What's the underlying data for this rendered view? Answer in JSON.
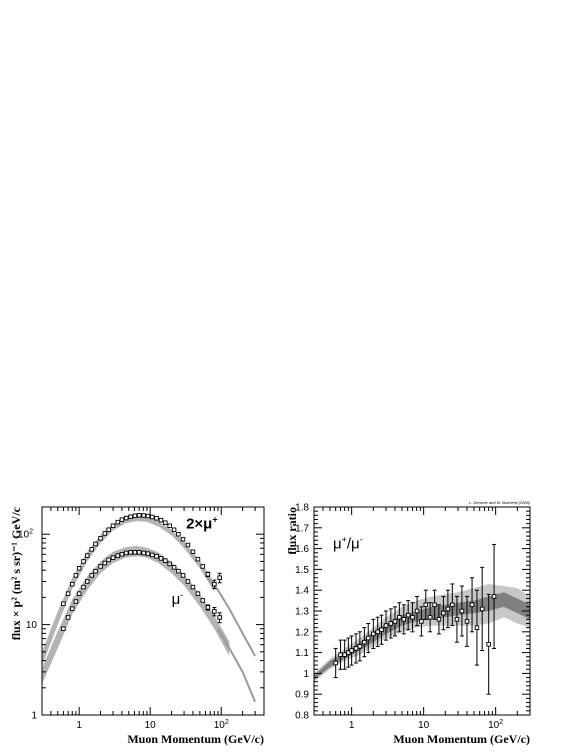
{
  "chart_data": [
    {
      "type": "line",
      "xlabel": "Muon Momentum (GeV/c)",
      "ylabel": "flux × p² (m² s sr)⁻¹ GeV/c",
      "x_scale": "log",
      "y_scale": "log",
      "xlim": [
        0.3,
        400
      ],
      "ylim": [
        1,
        200
      ],
      "x_ticks": [
        {
          "v": 1,
          "t": "1"
        },
        {
          "v": 10,
          "t": "10"
        },
        {
          "v": 100,
          "t": "10",
          "sup": "2"
        }
      ],
      "y_ticks": [
        {
          "v": 1,
          "t": "1"
        },
        {
          "v": 10,
          "t": "10"
        },
        {
          "v": 100,
          "t": "10",
          "sup": "2"
        }
      ],
      "annotations": [
        {
          "text": "2×μ",
          "sup": "+",
          "at": [
            32,
            115
          ]
        },
        {
          "text": "μ",
          "sup": "-",
          "at": [
            20,
            17
          ]
        }
      ],
      "series": [
        {
          "role": "band-plus",
          "x": [
            0.3,
            0.5,
            0.8,
            1.3,
            2,
            3,
            4.5,
            6.5,
            9,
            13,
            20,
            30,
            50,
            80
          ],
          "low": [
            3.5,
            10,
            25,
            50,
            80,
            110,
            132,
            140,
            137,
            122,
            97,
            70,
            42,
            23
          ],
          "high": [
            5,
            14,
            33,
            64,
            98,
            130,
            150,
            158,
            156,
            140,
            112,
            83,
            51,
            29
          ]
        },
        {
          "role": "band-minus",
          "x": [
            0.3,
            0.5,
            0.8,
            1.3,
            2,
            3,
            4.5,
            6.5,
            9,
            13,
            20,
            30,
            50,
            80,
            130
          ],
          "low": [
            2.2,
            5.5,
            13,
            24,
            37,
            48,
            55,
            57,
            55,
            48,
            37,
            27,
            16,
            9,
            4.5
          ],
          "high": [
            3.3,
            8.5,
            19,
            34,
            50,
            64,
            72,
            74,
            71,
            63,
            49,
            36,
            22,
            12.5,
            6.5
          ]
        },
        {
          "role": "tail-plus",
          "x": [
            60,
            90,
            130,
            200,
            300
          ],
          "y": [
            35,
            24,
            15,
            8,
            4.5
          ]
        },
        {
          "role": "tail-minus",
          "x": [
            90,
            130,
            200,
            300
          ],
          "y": [
            9,
            5.5,
            3,
            1.4
          ]
        },
        {
          "role": "points-plus",
          "x": [
            0.6,
            0.7,
            0.8,
            0.9,
            1.0,
            1.15,
            1.3,
            1.5,
            1.7,
            2.0,
            2.3,
            2.6,
            3.0,
            3.5,
            4.0,
            4.6,
            5.3,
            6.1,
            7.0,
            8.1,
            9.3,
            10.7,
            12.3,
            14.2,
            16.3,
            18.8,
            21.7,
            25,
            29,
            34,
            40,
            47,
            55,
            65,
            80,
            95
          ],
          "y": [
            17,
            22,
            28,
            35,
            42,
            50,
            58,
            68,
            78,
            90,
            102,
            112,
            124,
            136,
            145,
            151,
            156,
            160,
            162,
            161,
            159,
            155,
            150,
            143,
            134,
            124,
            112,
            100,
            88,
            76,
            64,
            53,
            44,
            36,
            28,
            33
          ],
          "err": [
            0,
            0,
            0,
            0,
            0,
            0,
            0,
            0,
            0,
            0,
            0,
            0,
            0,
            0,
            0,
            0,
            0,
            0,
            0,
            0,
            0,
            0,
            0,
            0,
            0,
            0,
            0,
            0,
            0,
            0,
            0,
            0,
            0,
            2,
            3,
            4
          ]
        },
        {
          "role": "points-minus",
          "x": [
            0.6,
            0.7,
            0.8,
            0.9,
            1.0,
            1.15,
            1.3,
            1.5,
            1.7,
            2.0,
            2.3,
            2.6,
            3.0,
            3.5,
            4.0,
            4.6,
            5.3,
            6.1,
            7.0,
            8.1,
            9.3,
            10.7,
            12.3,
            14.2,
            16.3,
            18.8,
            21.7,
            25,
            29,
            34,
            40,
            47,
            55,
            65,
            80,
            95
          ],
          "y": [
            9,
            12,
            15,
            18,
            22,
            26,
            30,
            35,
            39,
            44,
            48,
            52,
            55,
            58,
            60,
            62,
            63,
            63,
            63,
            62,
            61,
            59,
            57,
            54,
            51,
            47,
            43,
            39,
            35,
            30,
            26,
            22,
            18.5,
            15.5,
            14,
            12
          ],
          "err": [
            0,
            0,
            0,
            0,
            0,
            0,
            0,
            0,
            0,
            0,
            0,
            0,
            0,
            0,
            0,
            0,
            0,
            0,
            0,
            0,
            0,
            0,
            0,
            0,
            0,
            0,
            0,
            0,
            0,
            0,
            0,
            0,
            0,
            1,
            1.5,
            1.5
          ]
        }
      ]
    },
    {
      "type": "scatter",
      "xlabel": "Muon Momentum (GeV/c)",
      "ylabel": "flux ratio",
      "x_scale": "log",
      "xlim": [
        0.3,
        300
      ],
      "ylim": [
        0.8,
        1.8
      ],
      "credit": "L. Derome and M. Buenerd (2006)",
      "x_ticks": [
        {
          "v": 1,
          "t": "1"
        },
        {
          "v": 10,
          "t": "10"
        },
        {
          "v": 100,
          "t": "10",
          "sup": "2"
        }
      ],
      "y_ticks": [
        {
          "v": 0.8,
          "t": "0.8"
        },
        {
          "v": 0.9,
          "t": "0.9"
        },
        {
          "v": 1.0,
          "t": "1"
        },
        {
          "v": 1.1,
          "t": "1.1"
        },
        {
          "v": 1.2,
          "t": "1.2"
        },
        {
          "v": 1.3,
          "t": "1.3"
        },
        {
          "v": 1.4,
          "t": "1.4"
        },
        {
          "v": 1.5,
          "t": "1.5"
        },
        {
          "v": 1.6,
          "t": "1.6"
        },
        {
          "v": 1.7,
          "t": "1.7"
        },
        {
          "v": 1.8,
          "t": "1.8"
        }
      ],
      "annotations": [
        {
          "text": "μ",
          "sup": "+",
          "tail": "/μ",
          "sup2": "-",
          "at": [
            0.55,
            1.6
          ]
        }
      ],
      "series": [
        {
          "role": "band-light",
          "x": [
            0.3,
            0.5,
            0.8,
            1.3,
            2,
            3,
            5,
            8,
            13,
            20,
            30,
            50,
            80,
            130,
            200,
            300
          ],
          "low": [
            0.96,
            1.02,
            1.06,
            1.09,
            1.13,
            1.17,
            1.2,
            1.22,
            1.23,
            1.23,
            1.23,
            1.23,
            1.24,
            1.27,
            1.24,
            1.22
          ],
          "high": [
            1.0,
            1.07,
            1.12,
            1.17,
            1.22,
            1.27,
            1.32,
            1.35,
            1.37,
            1.38,
            1.39,
            1.41,
            1.43,
            1.42,
            1.41,
            1.37
          ]
        },
        {
          "role": "band-dark",
          "x": [
            0.3,
            0.5,
            0.8,
            1.3,
            2,
            3,
            5,
            8,
            13,
            20,
            30,
            50,
            80,
            130,
            200,
            300
          ],
          "low": [
            0.97,
            1.03,
            1.07,
            1.11,
            1.15,
            1.19,
            1.23,
            1.25,
            1.26,
            1.27,
            1.28,
            1.29,
            1.3,
            1.32,
            1.29,
            1.26
          ],
          "high": [
            0.99,
            1.06,
            1.1,
            1.15,
            1.2,
            1.24,
            1.28,
            1.3,
            1.32,
            1.33,
            1.34,
            1.35,
            1.37,
            1.39,
            1.36,
            1.33
          ]
        },
        {
          "role": "points",
          "x": [
            0.6,
            0.7,
            0.8,
            0.9,
            1.0,
            1.15,
            1.3,
            1.5,
            1.7,
            2.0,
            2.3,
            2.6,
            3.0,
            3.5,
            4.0,
            4.6,
            5.3,
            6.1,
            7.0,
            8.1,
            9.3,
            10.7,
            12.3,
            14.2,
            16.3,
            18.8,
            21.7,
            25,
            29,
            34,
            40,
            47,
            55,
            65,
            80,
            95
          ],
          "y": [
            1.05,
            1.09,
            1.09,
            1.1,
            1.11,
            1.12,
            1.13,
            1.15,
            1.17,
            1.19,
            1.2,
            1.21,
            1.23,
            1.24,
            1.25,
            1.27,
            1.26,
            1.28,
            1.27,
            1.3,
            1.25,
            1.33,
            1.27,
            1.33,
            1.26,
            1.29,
            1.31,
            1.33,
            1.26,
            1.3,
            1.25,
            1.33,
            1.22,
            1.31,
            1.14,
            1.37
          ],
          "err": [
            0.07,
            0.07,
            0.07,
            0.07,
            0.07,
            0.07,
            0.07,
            0.07,
            0.07,
            0.07,
            0.07,
            0.07,
            0.07,
            0.07,
            0.07,
            0.07,
            0.07,
            0.07,
            0.07,
            0.07,
            0.07,
            0.07,
            0.07,
            0.07,
            0.07,
            0.08,
            0.09,
            0.1,
            0.11,
            0.12,
            0.12,
            0.13,
            0.18,
            0.2,
            0.24,
            0.25
          ]
        }
      ]
    }
  ]
}
